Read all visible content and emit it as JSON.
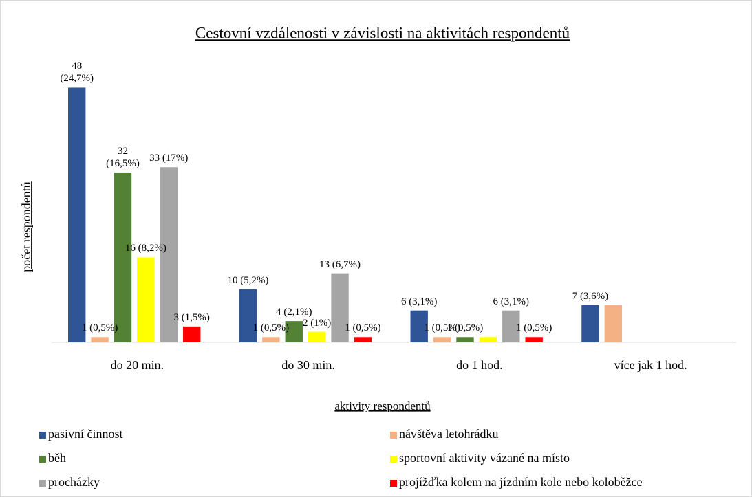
{
  "chart_data": {
    "type": "bar",
    "title": "Cestovní vzdálenosti v závislosti na aktivitách respondentů",
    "x_label": "aktivity respondentů",
    "y_label": "počet respondentů",
    "categories": [
      "do 20 min.",
      "do 30 min.",
      "do 1 hod.",
      "více jak 1 hod."
    ],
    "ylim": [
      0,
      50
    ],
    "series": [
      {
        "name": "pasivní činnost",
        "color": "#2f5597",
        "values": [
          48,
          10,
          6,
          7
        ],
        "value_labels": [
          "48 (24,7%)",
          "10 (5,2%)",
          "6 (3,1%)",
          "7 (3,6%)"
        ]
      },
      {
        "name": "návštěva letohrádku",
        "color": "#f4b183",
        "values": [
          1,
          1,
          1,
          7
        ],
        "value_labels": [
          "1 (0,5%)",
          "1 (0,5%)",
          "1 (0,5%)",
          null
        ]
      },
      {
        "name": "běh",
        "color": "#548235",
        "values": [
          32,
          4,
          1,
          null
        ],
        "value_labels": [
          "32 (16,5%)",
          "4 (2,1%)",
          "1 (0,5%)",
          null
        ]
      },
      {
        "name": "sportovní aktivity vázané na místo",
        "color": "#ffff00",
        "values": [
          16,
          2,
          1,
          null
        ],
        "value_labels": [
          "16 (8,2%)",
          "2 (1%)",
          null,
          null
        ]
      },
      {
        "name": "procházky",
        "color": "#a5a5a5",
        "values": [
          33,
          13,
          6,
          null
        ],
        "value_labels": [
          "33 (17%)",
          "13 (6,7%)",
          "6 (3,1%)",
          null
        ]
      },
      {
        "name": "projížďka kolem na jízdním kole nebo koloběžce",
        "color": "#ff0000",
        "values": [
          3,
          1,
          1,
          null
        ],
        "value_labels": [
          "3 (1,5%)",
          "1 (0,5%)",
          "1 (0,5%)",
          null
        ]
      }
    ],
    "legend": "bottom"
  }
}
